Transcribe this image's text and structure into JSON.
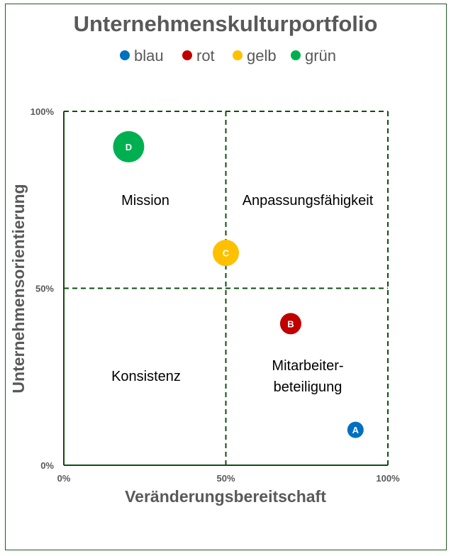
{
  "chart_data": {
    "type": "bubble",
    "title": "Unternehmenskulturportfolio",
    "xlabel": "Veränderungsbereitschaft",
    "ylabel": "Unternehmensorientierung",
    "xlim": [
      0,
      1
    ],
    "ylim": [
      0,
      1
    ],
    "x_ticks": [
      "0%",
      "50%",
      "100%"
    ],
    "y_ticks": [
      "0%",
      "50%",
      "100%"
    ],
    "grid": "dashed quadrant lines at 50%",
    "legend_position": "top",
    "quadrants": {
      "top_left": "Mission",
      "top_right": "Anpassungsfähigkeit",
      "bottom_left": "Konsistenz",
      "bottom_right_line1": "Mitarbeiter-",
      "bottom_right_line2": "beteiligung"
    },
    "series": [
      {
        "name": "blau",
        "label": "A",
        "x": 0.9,
        "y": 0.1,
        "size": 1,
        "color": "#0070c0"
      },
      {
        "name": "rot",
        "label": "B",
        "x": 0.7,
        "y": 0.4,
        "size": 2,
        "color": "#c00000"
      },
      {
        "name": "gelb",
        "label": "C",
        "x": 0.5,
        "y": 0.6,
        "size": 3,
        "color": "#ffc000"
      },
      {
        "name": "grün",
        "label": "D",
        "x": 0.2,
        "y": 0.9,
        "size": 4,
        "color": "#00b050"
      }
    ],
    "axis_color": "#0f4d0f"
  }
}
